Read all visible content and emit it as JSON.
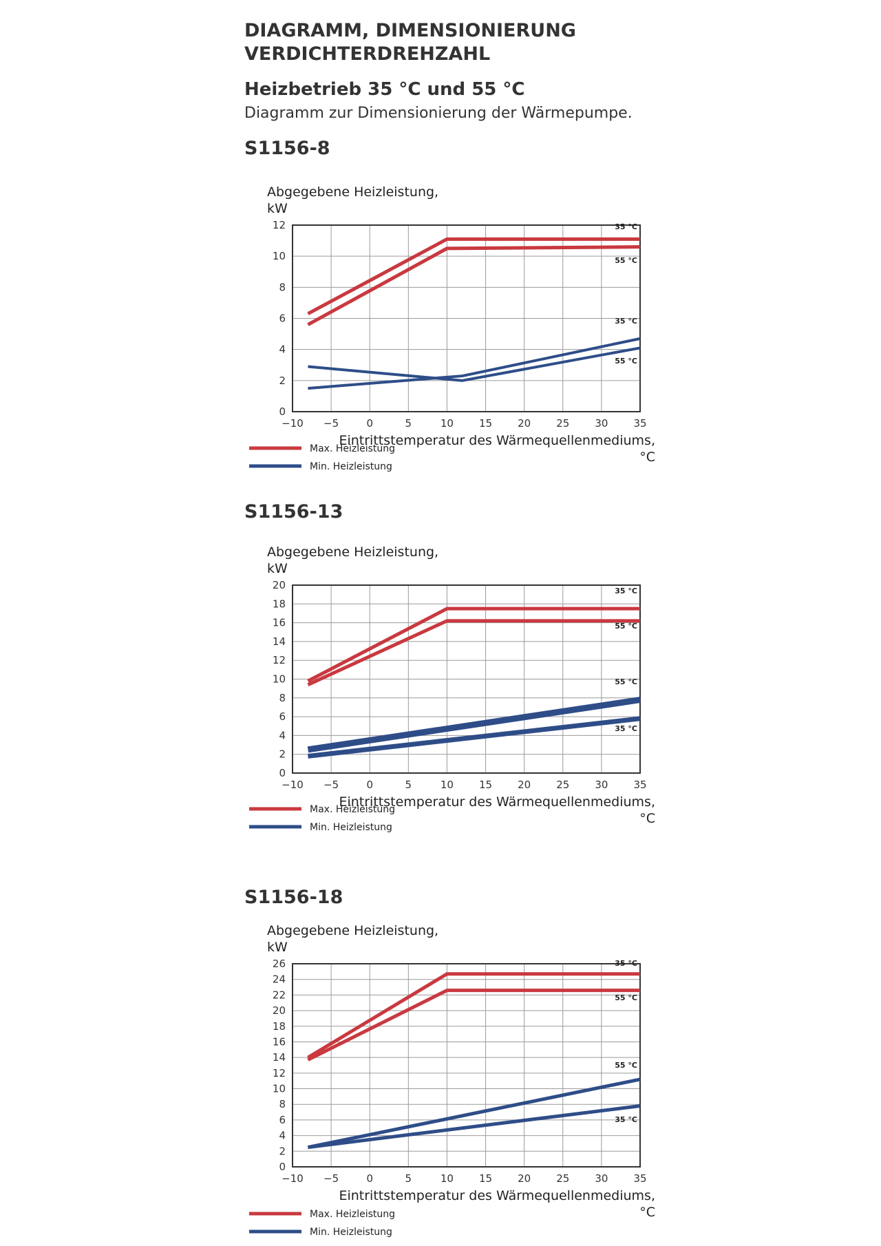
{
  "header": {
    "title_line1": "DIAGRAMM, DIMENSIONIERUNG",
    "title_line2": "VERDICHTERDREHZAHL",
    "subtitle": "Heizbetrieb 35  °C und 55  °C",
    "description": "Diagramm zur Dimensionierung der Wärmepumpe."
  },
  "colors": {
    "max": "#c9393f",
    "min": "#2e4d88",
    "grid": "#9a9a9a",
    "frame": "#333333"
  },
  "chart_data": [
    {
      "type": "line",
      "title": "S1156-8",
      "ylabel_line1": "Abgegebene Heizleistung,",
      "ylabel_line2": "kW",
      "xlabel_line1": "Eintrittstemperatur des Wärmequellenmediums,",
      "xlabel_line2": "°C",
      "xlim": [
        -10,
        35
      ],
      "ylim": [
        0,
        12
      ],
      "xticks": [
        -10,
        -5,
        0,
        5,
        10,
        15,
        20,
        25,
        30,
        35
      ],
      "yticks": [
        0,
        2,
        4,
        6,
        8,
        10,
        12
      ],
      "grid": true,
      "legend": [
        {
          "label": "Max. Heizleistung",
          "kind": "max"
        },
        {
          "label": "Min. Heizleistung",
          "kind": "min"
        }
      ],
      "series": [
        {
          "kind": "max",
          "curve_label": "35 °C",
          "x": [
            -8,
            10,
            35
          ],
          "y": [
            6.3,
            11.1,
            11.1
          ]
        },
        {
          "kind": "max",
          "curve_label": "55 °C",
          "x": [
            -8,
            10,
            35
          ],
          "y": [
            5.6,
            10.5,
            10.6
          ]
        },
        {
          "kind": "min",
          "curve_label": "35 °C",
          "x": [
            -8,
            12,
            35
          ],
          "y": [
            1.5,
            2.3,
            4.7
          ]
        },
        {
          "kind": "min",
          "curve_label": "55 °C",
          "x": [
            -8,
            12,
            35
          ],
          "y": [
            2.9,
            2.0,
            4.1
          ]
        }
      ]
    },
    {
      "type": "line",
      "title": "S1156-13",
      "ylabel_line1": "Abgegebene Heizleistung,",
      "ylabel_line2": "kW",
      "xlabel_line1": "Eintrittstemperatur des Wärmequellenmediums,",
      "xlabel_line2": "°C",
      "xlim": [
        -10,
        35
      ],
      "ylim": [
        0,
        20
      ],
      "xticks": [
        -10,
        -5,
        0,
        5,
        10,
        15,
        20,
        25,
        30,
        35
      ],
      "yticks": [
        0,
        2,
        4,
        6,
        8,
        10,
        12,
        14,
        16,
        18,
        20
      ],
      "grid": true,
      "legend": [
        {
          "label": "Max. Heizleistung",
          "kind": "max"
        },
        {
          "label": "Min. Heizleistung",
          "kind": "min"
        }
      ],
      "series": [
        {
          "kind": "max",
          "curve_label": "35 °C",
          "x": [
            -8,
            10,
            35
          ],
          "y": [
            9.8,
            17.5,
            17.5
          ]
        },
        {
          "kind": "max",
          "curve_label": "55 °C",
          "x": [
            -8,
            10,
            35
          ],
          "y": [
            9.4,
            16.2,
            16.2
          ]
        },
        {
          "kind": "min",
          "curve_label": "55 °C",
          "x": [
            -8,
            35
          ],
          "y": [
            2.5,
            7.8
          ]
        },
        {
          "kind": "min",
          "curve_label": "35 °C",
          "x": [
            -8,
            35
          ],
          "y": [
            1.8,
            5.8
          ]
        }
      ]
    },
    {
      "type": "line",
      "title": "S1156-18",
      "ylabel_line1": "Abgegebene Heizleistung,",
      "ylabel_line2": "kW",
      "xlabel_line1": "Eintrittstemperatur des Wärmequellenmediums,",
      "xlabel_line2": "°C",
      "xlim": [
        -10,
        35
      ],
      "ylim": [
        0,
        26
      ],
      "xticks": [
        -10,
        -5,
        0,
        5,
        10,
        15,
        20,
        25,
        30,
        35
      ],
      "yticks": [
        0,
        2,
        4,
        6,
        8,
        10,
        12,
        14,
        16,
        18,
        20,
        22,
        24,
        26
      ],
      "grid": true,
      "legend": [
        {
          "label": "Max. Heizleistung",
          "kind": "max"
        },
        {
          "label": "Min. Heizleistung",
          "kind": "min"
        }
      ],
      "series": [
        {
          "kind": "max",
          "curve_label": "35 °C",
          "x": [
            -8,
            10,
            35
          ],
          "y": [
            14.0,
            24.7,
            24.7
          ]
        },
        {
          "kind": "max",
          "curve_label": "55 °C",
          "x": [
            -8,
            10,
            35
          ],
          "y": [
            13.7,
            22.6,
            22.6
          ]
        },
        {
          "kind": "min",
          "curve_label": "55 °C",
          "x": [
            -8,
            35
          ],
          "y": [
            2.5,
            11.2
          ]
        },
        {
          "kind": "min",
          "curve_label": "35 °C",
          "x": [
            -8,
            35
          ],
          "y": [
            2.5,
            7.8
          ]
        }
      ]
    }
  ]
}
